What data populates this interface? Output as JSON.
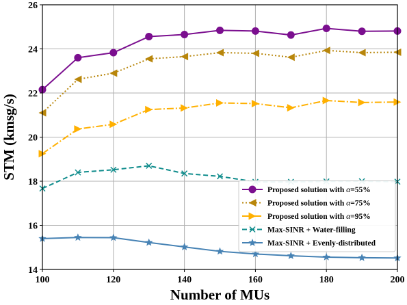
{
  "chart_data": {
    "type": "line",
    "xlabel": "Number of MUs",
    "ylabel": "STM (kmsg/s)",
    "xlim": [
      100,
      200
    ],
    "ylim": [
      14,
      26
    ],
    "x_ticks": [
      "100",
      "120",
      "140",
      "160",
      "180",
      "200"
    ],
    "y_ticks": [
      "14",
      "16",
      "18",
      "20",
      "22",
      "24",
      "26"
    ],
    "grid": true,
    "legend_position": "lower-right",
    "x": [
      100,
      110,
      120,
      130,
      140,
      150,
      160,
      170,
      180,
      190,
      200
    ],
    "series": [
      {
        "name": "Proposed solution with α=55%",
        "name_prefix": "Proposed solution with ",
        "name_symbol": "α",
        "name_suffix": "=55%",
        "color": "#7b0f8f",
        "marker": "circle",
        "dash": "solid",
        "values": [
          22.15,
          23.6,
          23.83,
          24.56,
          24.65,
          24.84,
          24.81,
          24.63,
          24.93,
          24.8,
          24.81
        ]
      },
      {
        "name": "Proposed solution with α=75%",
        "name_prefix": "Proposed solution with ",
        "name_symbol": "α",
        "name_suffix": "=75%",
        "color": "#b8860b",
        "marker": "triangle-left",
        "dash": "dotted",
        "values": [
          21.1,
          22.62,
          22.9,
          23.55,
          23.65,
          23.83,
          23.8,
          23.62,
          23.93,
          23.83,
          23.85
        ]
      },
      {
        "name": "Proposed solution with α=95%",
        "name_prefix": "Proposed solution with ",
        "name_symbol": "α",
        "name_suffix": "=95%",
        "color": "#ffb000",
        "marker": "triangle-right",
        "dash": "dashdot",
        "values": [
          19.25,
          20.37,
          20.58,
          21.25,
          21.32,
          21.55,
          21.52,
          21.33,
          21.66,
          21.57,
          21.59
        ]
      },
      {
        "name": "Max-SINR + Water-filling",
        "name_prefix": "Max-SINR + Water-filling",
        "name_symbol": "",
        "name_suffix": "",
        "color": "#0f8c8c",
        "marker": "x",
        "dash": "dashed",
        "values": [
          17.67,
          18.4,
          18.52,
          18.7,
          18.35,
          18.22,
          17.97,
          17.97,
          17.99,
          18.0,
          17.98
        ]
      },
      {
        "name": "Max-SINR + Evenly-distributed",
        "name_prefix": "Max-SINR + Evenly-distributed",
        "name_symbol": "",
        "name_suffix": "",
        "color": "#4682b4",
        "marker": "star",
        "dash": "solid",
        "values": [
          15.4,
          15.45,
          15.44,
          15.22,
          15.02,
          14.82,
          14.7,
          14.62,
          14.56,
          14.53,
          14.52
        ]
      }
    ]
  }
}
